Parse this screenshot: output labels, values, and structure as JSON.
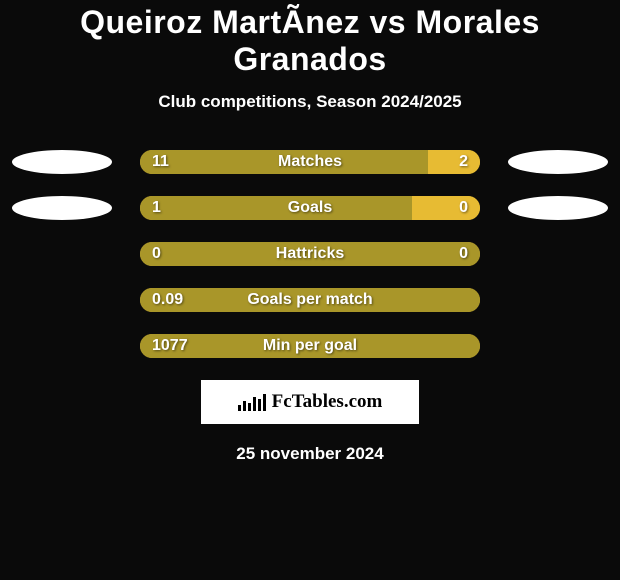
{
  "title": "Queiroz MartÃ­nez vs Morales Granados",
  "subtitle": "Club competitions, Season 2024/2025",
  "footer_date": "25 november 2024",
  "brand": "FcTables.com",
  "colors": {
    "player1": "#a99629",
    "player2": "#e7bb33",
    "background": "#0a0a0a",
    "avatar": "#ffffff",
    "brand_bg": "#ffffff",
    "text": "#ffffff"
  },
  "metrics": [
    {
      "label": "Matches",
      "left_value": "11",
      "right_value": "2",
      "left_pct": 84.6,
      "right_pct": 15.4,
      "show_avatars": true,
      "show_right_value": true
    },
    {
      "label": "Goals",
      "left_value": "1",
      "right_value": "0",
      "left_pct": 80,
      "right_pct": 20,
      "show_avatars": true,
      "show_right_value": true
    },
    {
      "label": "Hattricks",
      "left_value": "0",
      "right_value": "0",
      "left_pct": 100,
      "right_pct": 0,
      "show_avatars": false,
      "show_right_value": true
    },
    {
      "label": "Goals per match",
      "left_value": "0.09",
      "right_value": "",
      "left_pct": 100,
      "right_pct": 0,
      "show_avatars": false,
      "show_right_value": false
    },
    {
      "label": "Min per goal",
      "left_value": "1077",
      "right_value": "",
      "left_pct": 100,
      "right_pct": 0,
      "show_avatars": false,
      "show_right_value": false
    }
  ]
}
